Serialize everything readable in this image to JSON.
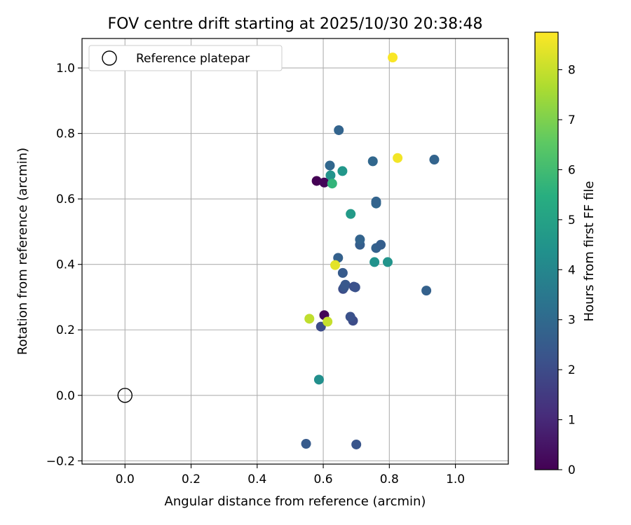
{
  "chart_data": {
    "type": "scatter",
    "title": "FOV centre drift starting at 2025/10/30 20:38:48",
    "xlabel": "Angular distance from reference (arcmin)",
    "ylabel": "Rotation from reference (arcmin)",
    "xlim": [
      -0.13,
      1.16
    ],
    "ylim": [
      -0.21,
      1.09
    ],
    "xticks": [
      0.0,
      0.2,
      0.4,
      0.6,
      0.8,
      1.0
    ],
    "xtick_labels": [
      "0.0",
      "0.2",
      "0.4",
      "0.6",
      "0.8",
      "1.0"
    ],
    "yticks": [
      -0.2,
      0.0,
      0.2,
      0.4,
      0.6,
      0.8,
      1.0
    ],
    "ytick_labels": [
      "−0.2",
      "0.0",
      "0.2",
      "0.4",
      "0.6",
      "0.8",
      "1.0"
    ],
    "grid": true,
    "legend": {
      "position": "top-left",
      "label": "Reference platepar"
    },
    "reference_point": {
      "x": 0.0,
      "y": 0.0
    },
    "colorbar": {
      "label": "Hours from first FF file",
      "colormap": "viridis",
      "range": [
        0,
        8.75
      ],
      "ticks": [
        0,
        1,
        2,
        3,
        4,
        5,
        6,
        7,
        8
      ],
      "tick_labels": [
        "0",
        "1",
        "2",
        "3",
        "4",
        "5",
        "6",
        "7",
        "8"
      ]
    },
    "points": [
      {
        "x": 0.58,
        "y": 0.655,
        "hours": 0.0
      },
      {
        "x": 0.603,
        "y": 0.65,
        "hours": 0.15
      },
      {
        "x": 0.603,
        "y": 0.245,
        "hours": 0.1
      },
      {
        "x": 0.593,
        "y": 0.21,
        "hours": 2.0
      },
      {
        "x": 0.69,
        "y": 0.228,
        "hours": 2.0
      },
      {
        "x": 0.682,
        "y": 0.24,
        "hours": 2.2
      },
      {
        "x": 0.66,
        "y": 0.325,
        "hours": 2.0
      },
      {
        "x": 0.663,
        "y": 0.33,
        "hours": 2.3
      },
      {
        "x": 0.667,
        "y": 0.338,
        "hours": 2.4
      },
      {
        "x": 0.693,
        "y": 0.332,
        "hours": 2.1
      },
      {
        "x": 0.697,
        "y": 0.33,
        "hours": 2.2
      },
      {
        "x": 0.659,
        "y": 0.374,
        "hours": 2.5
      },
      {
        "x": 0.645,
        "y": 0.42,
        "hours": 2.7
      },
      {
        "x": 0.711,
        "y": 0.46,
        "hours": 2.6
      },
      {
        "x": 0.711,
        "y": 0.476,
        "hours": 2.8
      },
      {
        "x": 0.76,
        "y": 0.45,
        "hours": 2.7
      },
      {
        "x": 0.774,
        "y": 0.46,
        "hours": 2.6
      },
      {
        "x": 0.76,
        "y": 0.586,
        "hours": 2.9
      },
      {
        "x": 0.76,
        "y": 0.592,
        "hours": 2.8
      },
      {
        "x": 0.62,
        "y": 0.702,
        "hours": 2.9
      },
      {
        "x": 0.75,
        "y": 0.715,
        "hours": 2.9
      },
      {
        "x": 0.647,
        "y": 0.81,
        "hours": 2.8
      },
      {
        "x": 0.936,
        "y": 0.72,
        "hours": 2.8
      },
      {
        "x": 0.912,
        "y": 0.32,
        "hours": 2.7
      },
      {
        "x": 0.548,
        "y": -0.148,
        "hours": 2.5
      },
      {
        "x": 0.7,
        "y": -0.15,
        "hours": 2.3
      },
      {
        "x": 0.622,
        "y": 0.672,
        "hours": 4.5
      },
      {
        "x": 0.658,
        "y": 0.685,
        "hours": 4.6
      },
      {
        "x": 0.683,
        "y": 0.554,
        "hours": 4.7
      },
      {
        "x": 0.755,
        "y": 0.407,
        "hours": 4.4
      },
      {
        "x": 0.795,
        "y": 0.407,
        "hours": 4.5
      },
      {
        "x": 0.587,
        "y": 0.048,
        "hours": 4.3
      },
      {
        "x": 0.627,
        "y": 0.647,
        "hours": 5.7
      },
      {
        "x": 0.558,
        "y": 0.234,
        "hours": 7.9
      },
      {
        "x": 0.613,
        "y": 0.225,
        "hours": 8.0
      },
      {
        "x": 0.636,
        "y": 0.398,
        "hours": 8.4
      },
      {
        "x": 0.825,
        "y": 0.725,
        "hours": 8.6
      },
      {
        "x": 0.81,
        "y": 1.032,
        "hours": 8.7
      }
    ]
  }
}
